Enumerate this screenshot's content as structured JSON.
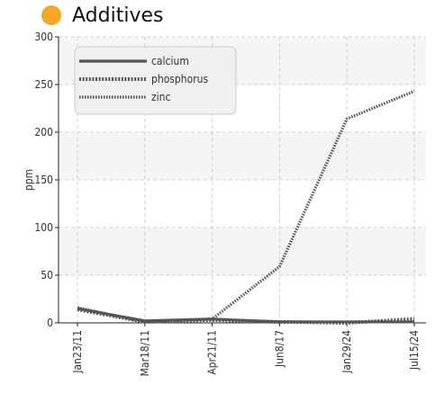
{
  "title": "Additives",
  "title_dot_color": "#F5A623",
  "chart_data": {
    "type": "line",
    "categories": [
      "Jan23/11",
      "Mar18/11",
      "Apr21/11",
      "Jun8/17",
      "Jan29/24",
      "Jul15/24"
    ],
    "ylabel": "ppm",
    "xlabel": "",
    "ylim": [
      0,
      300
    ],
    "yticks": [
      0,
      50,
      100,
      150,
      200,
      250,
      300
    ],
    "grid": true,
    "legend_position": "top-left",
    "series": [
      {
        "name": "calcium",
        "values": [
          15,
          2,
          4,
          1,
          1,
          1
        ],
        "color": "#555555",
        "style": "solid"
      },
      {
        "name": "phosphorus",
        "values": [
          14,
          1,
          3,
          1,
          0,
          4
        ],
        "color": "#555555",
        "style": "dotted-thick"
      },
      {
        "name": "zinc",
        "values": [
          16,
          1,
          4,
          59,
          214,
          243
        ],
        "color": "#555555",
        "style": "dotted"
      }
    ]
  }
}
